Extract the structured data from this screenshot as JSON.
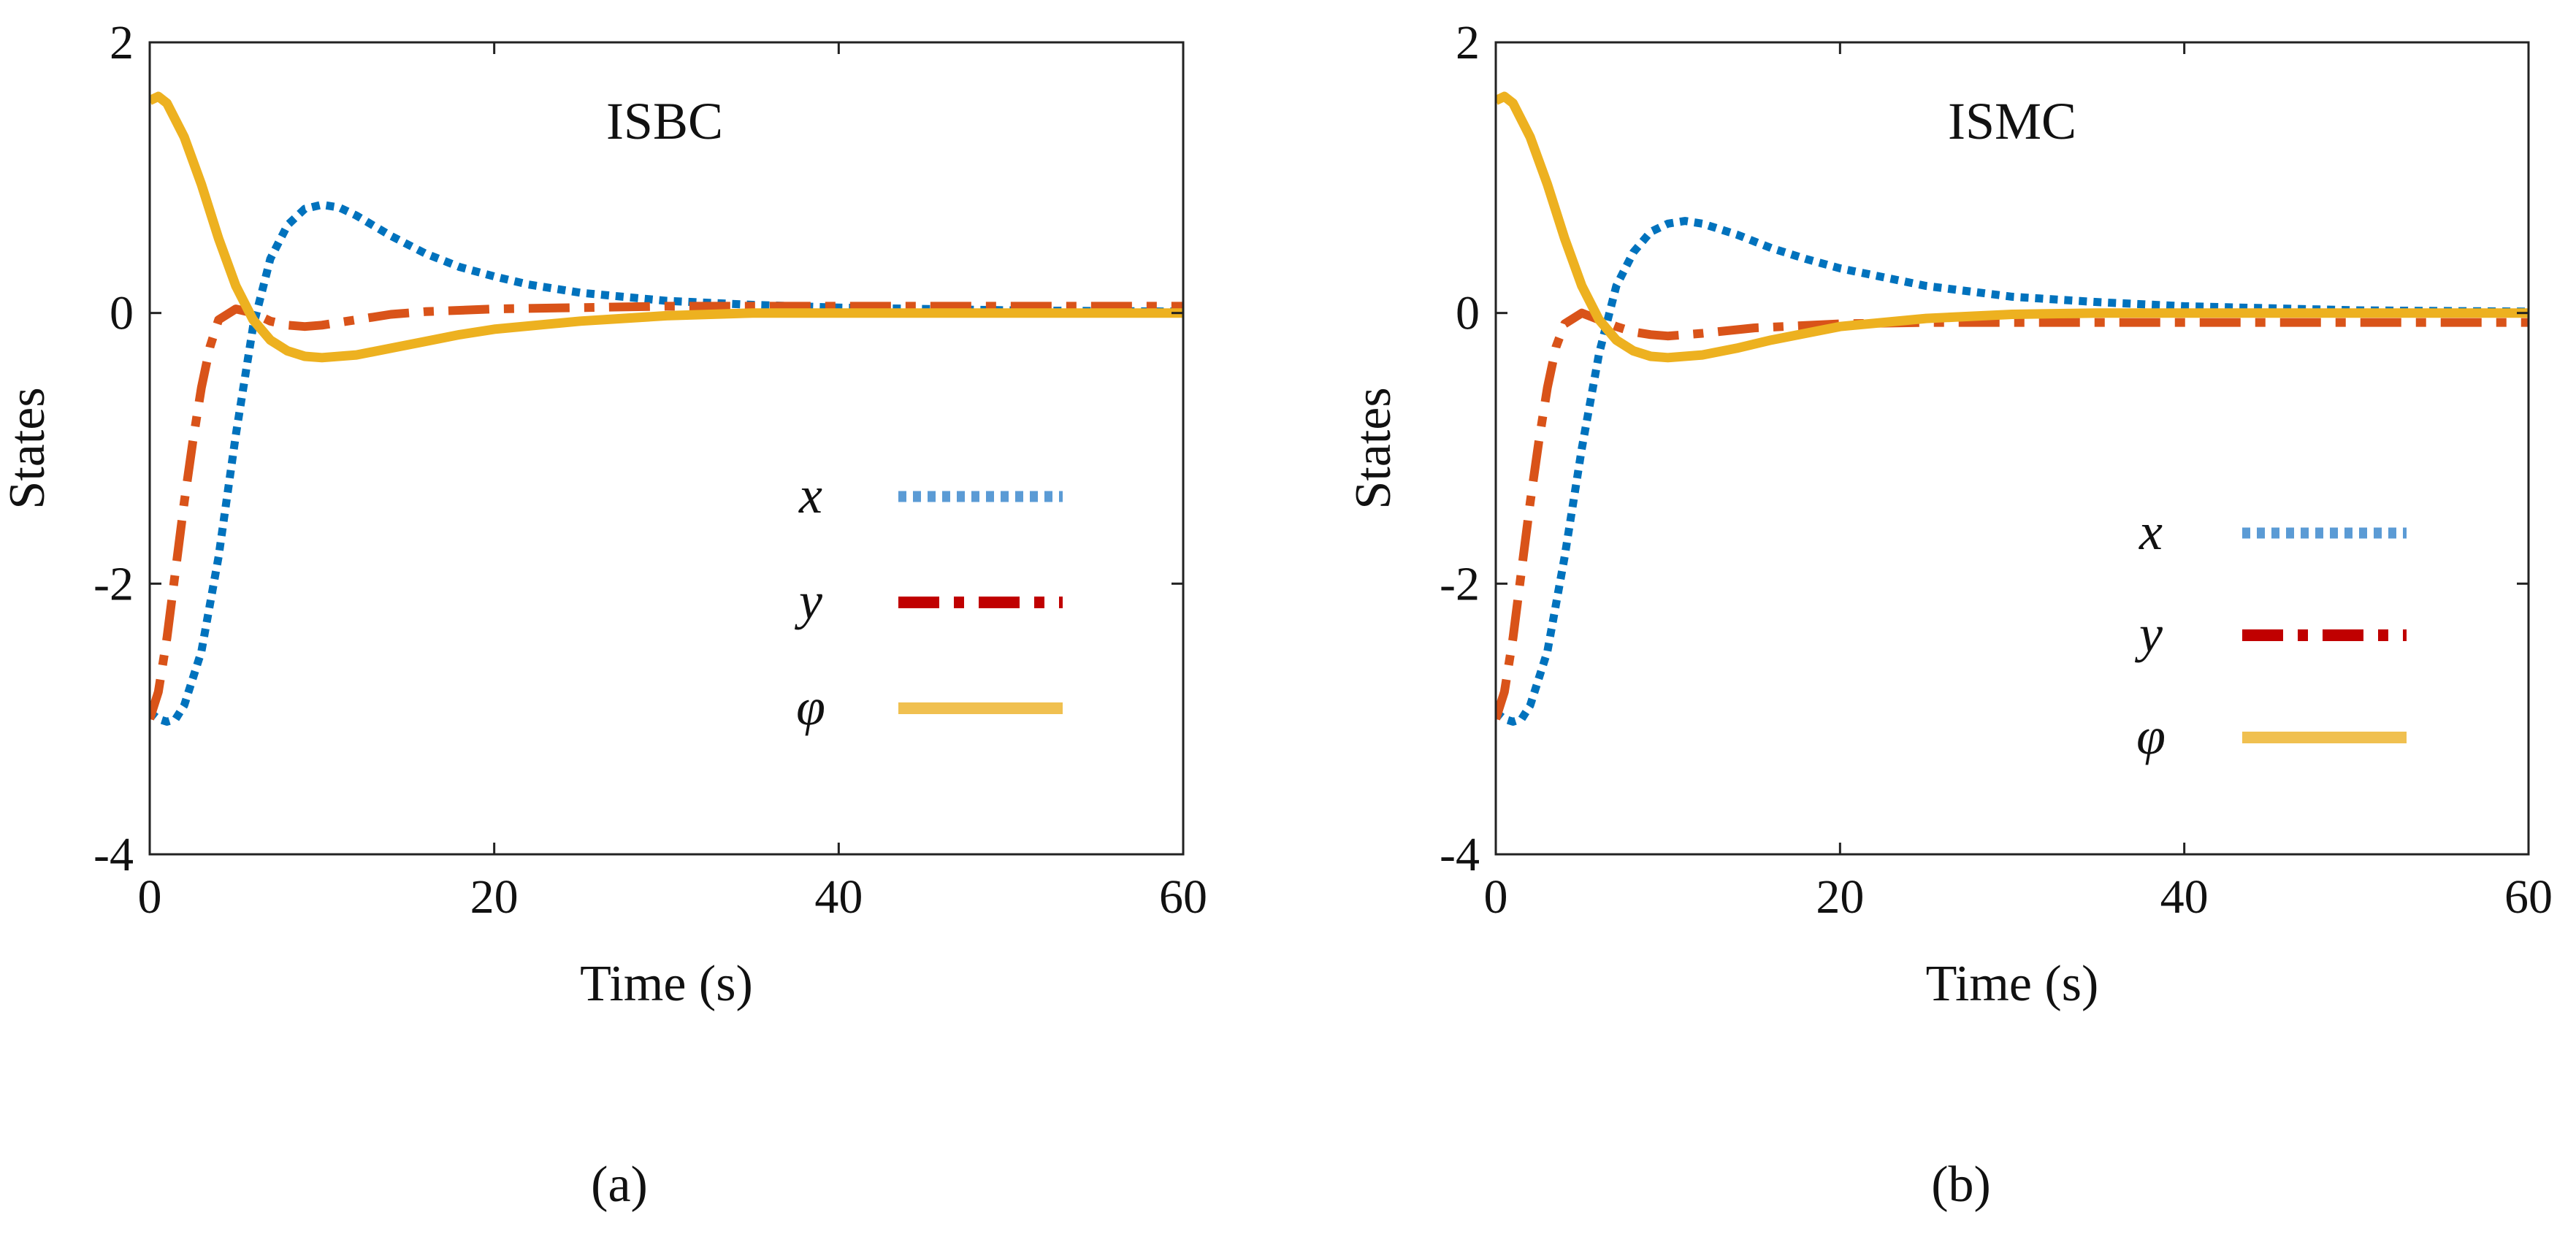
{
  "figure": {
    "captions": [
      "(a)",
      "(b)"
    ]
  },
  "chart_data": [
    {
      "type": "line",
      "title": "ISBC",
      "xlabel": "Time (s)",
      "ylabel": "States",
      "xlim": [
        0,
        60
      ],
      "ylim": [
        -4,
        2
      ],
      "xticks": [
        0,
        20,
        40,
        60
      ],
      "xtick_labels": [
        "0",
        "20",
        "40",
        "60"
      ],
      "yticks": [
        -4,
        -2,
        0,
        2
      ],
      "ytick_labels": [
        "-4",
        "-2",
        "0",
        "2"
      ],
      "grid": false,
      "legend_position": "center-right",
      "series": [
        {
          "name": "x",
          "legend_label": "x",
          "color": "#0072BD",
          "legend_color": "#5B9BD5",
          "style": "dotted",
          "points": [
            [
              0,
              -2.95
            ],
            [
              0.5,
              -3.0
            ],
            [
              1,
              -3.02
            ],
            [
              1.5,
              -3.0
            ],
            [
              2,
              -2.9
            ],
            [
              3,
              -2.5
            ],
            [
              4,
              -1.8
            ],
            [
              5,
              -0.9
            ],
            [
              6,
              -0.1
            ],
            [
              7,
              0.4
            ],
            [
              8,
              0.65
            ],
            [
              9,
              0.77
            ],
            [
              10,
              0.8
            ],
            [
              11,
              0.78
            ],
            [
              12,
              0.72
            ],
            [
              14,
              0.57
            ],
            [
              16,
              0.44
            ],
            [
              18,
              0.34
            ],
            [
              20,
              0.27
            ],
            [
              22,
              0.21
            ],
            [
              25,
              0.15
            ],
            [
              30,
              0.09
            ],
            [
              35,
              0.06
            ],
            [
              40,
              0.04
            ],
            [
              50,
              0.02
            ],
            [
              60,
              0.01
            ]
          ]
        },
        {
          "name": "y",
          "legend_label": "y",
          "color": "#D95319",
          "legend_color": "#C00000",
          "style": "dashdot",
          "points": [
            [
              0,
              -3.0
            ],
            [
              0.5,
              -2.8
            ],
            [
              1,
              -2.4
            ],
            [
              1.5,
              -1.9
            ],
            [
              2,
              -1.4
            ],
            [
              2.5,
              -0.95
            ],
            [
              3,
              -0.55
            ],
            [
              3.5,
              -0.25
            ],
            [
              4,
              -0.05
            ],
            [
              5,
              0.03
            ],
            [
              6,
              0.0
            ],
            [
              7,
              -0.06
            ],
            [
              8,
              -0.09
            ],
            [
              9,
              -0.1
            ],
            [
              10,
              -0.09
            ],
            [
              12,
              -0.05
            ],
            [
              14,
              -0.01
            ],
            [
              16,
              0.01
            ],
            [
              20,
              0.03
            ],
            [
              25,
              0.04
            ],
            [
              30,
              0.05
            ],
            [
              40,
              0.05
            ],
            [
              50,
              0.05
            ],
            [
              60,
              0.05
            ]
          ]
        },
        {
          "name": "φ",
          "legend_label": "φ",
          "color": "#EDB120",
          "legend_color": "#F0C050",
          "style": "solid",
          "points": [
            [
              0,
              1.57
            ],
            [
              0.5,
              1.6
            ],
            [
              1,
              1.55
            ],
            [
              2,
              1.3
            ],
            [
              3,
              0.95
            ],
            [
              4,
              0.55
            ],
            [
              5,
              0.2
            ],
            [
              6,
              -0.05
            ],
            [
              7,
              -0.2
            ],
            [
              8,
              -0.28
            ],
            [
              9,
              -0.32
            ],
            [
              10,
              -0.33
            ],
            [
              12,
              -0.31
            ],
            [
              14,
              -0.26
            ],
            [
              16,
              -0.21
            ],
            [
              18,
              -0.16
            ],
            [
              20,
              -0.12
            ],
            [
              25,
              -0.06
            ],
            [
              30,
              -0.02
            ],
            [
              35,
              0.0
            ],
            [
              40,
              0.0
            ],
            [
              50,
              0.0
            ],
            [
              60,
              0.0
            ]
          ]
        }
      ]
    },
    {
      "type": "line",
      "title": "ISMC",
      "xlabel": "Time (s)",
      "ylabel": "States",
      "xlim": [
        0,
        60
      ],
      "ylim": [
        -4,
        2
      ],
      "xticks": [
        0,
        20,
        40,
        60
      ],
      "xtick_labels": [
        "0",
        "20",
        "40",
        "60"
      ],
      "yticks": [
        -4,
        -2,
        0,
        2
      ],
      "ytick_labels": [
        "-4",
        "-2",
        "0",
        "2"
      ],
      "grid": false,
      "legend_position": "lower-right",
      "series": [
        {
          "name": "x",
          "legend_label": "x",
          "color": "#0072BD",
          "legend_color": "#5B9BD5",
          "style": "dotted",
          "points": [
            [
              0,
              -2.95
            ],
            [
              0.5,
              -3.0
            ],
            [
              1,
              -3.02
            ],
            [
              1.5,
              -3.0
            ],
            [
              2,
              -2.9
            ],
            [
              3,
              -2.5
            ],
            [
              4,
              -1.8
            ],
            [
              5,
              -1.0
            ],
            [
              6,
              -0.3
            ],
            [
              7,
              0.2
            ],
            [
              8,
              0.45
            ],
            [
              9,
              0.6
            ],
            [
              10,
              0.66
            ],
            [
              11,
              0.68
            ],
            [
              12,
              0.66
            ],
            [
              14,
              0.58
            ],
            [
              16,
              0.48
            ],
            [
              18,
              0.4
            ],
            [
              20,
              0.33
            ],
            [
              25,
              0.2
            ],
            [
              30,
              0.12
            ],
            [
              35,
              0.08
            ],
            [
              40,
              0.05
            ],
            [
              50,
              0.02
            ],
            [
              60,
              0.01
            ]
          ]
        },
        {
          "name": "y",
          "legend_label": "y",
          "color": "#D95319",
          "legend_color": "#C00000",
          "style": "dashdot",
          "points": [
            [
              0,
              -3.0
            ],
            [
              0.5,
              -2.8
            ],
            [
              1,
              -2.4
            ],
            [
              1.5,
              -1.9
            ],
            [
              2,
              -1.4
            ],
            [
              2.5,
              -0.95
            ],
            [
              3,
              -0.55
            ],
            [
              3.5,
              -0.25
            ],
            [
              4,
              -0.08
            ],
            [
              5,
              0.0
            ],
            [
              6,
              -0.05
            ],
            [
              7,
              -0.1
            ],
            [
              8,
              -0.14
            ],
            [
              9,
              -0.16
            ],
            [
              10,
              -0.17
            ],
            [
              12,
              -0.15
            ],
            [
              15,
              -0.11
            ],
            [
              20,
              -0.08
            ],
            [
              25,
              -0.07
            ],
            [
              30,
              -0.07
            ],
            [
              40,
              -0.07
            ],
            [
              50,
              -0.07
            ],
            [
              60,
              -0.07
            ]
          ]
        },
        {
          "name": "φ",
          "legend_label": "φ",
          "color": "#EDB120",
          "legend_color": "#F0C050",
          "style": "solid",
          "points": [
            [
              0,
              1.57
            ],
            [
              0.5,
              1.6
            ],
            [
              1,
              1.55
            ],
            [
              2,
              1.3
            ],
            [
              3,
              0.95
            ],
            [
              4,
              0.55
            ],
            [
              5,
              0.2
            ],
            [
              6,
              -0.05
            ],
            [
              7,
              -0.2
            ],
            [
              8,
              -0.28
            ],
            [
              9,
              -0.32
            ],
            [
              10,
              -0.33
            ],
            [
              12,
              -0.31
            ],
            [
              14,
              -0.26
            ],
            [
              16,
              -0.2
            ],
            [
              18,
              -0.15
            ],
            [
              20,
              -0.1
            ],
            [
              25,
              -0.04
            ],
            [
              30,
              -0.01
            ],
            [
              35,
              0.0
            ],
            [
              40,
              0.0
            ],
            [
              50,
              0.0
            ],
            [
              60,
              0.0
            ]
          ]
        }
      ]
    }
  ]
}
